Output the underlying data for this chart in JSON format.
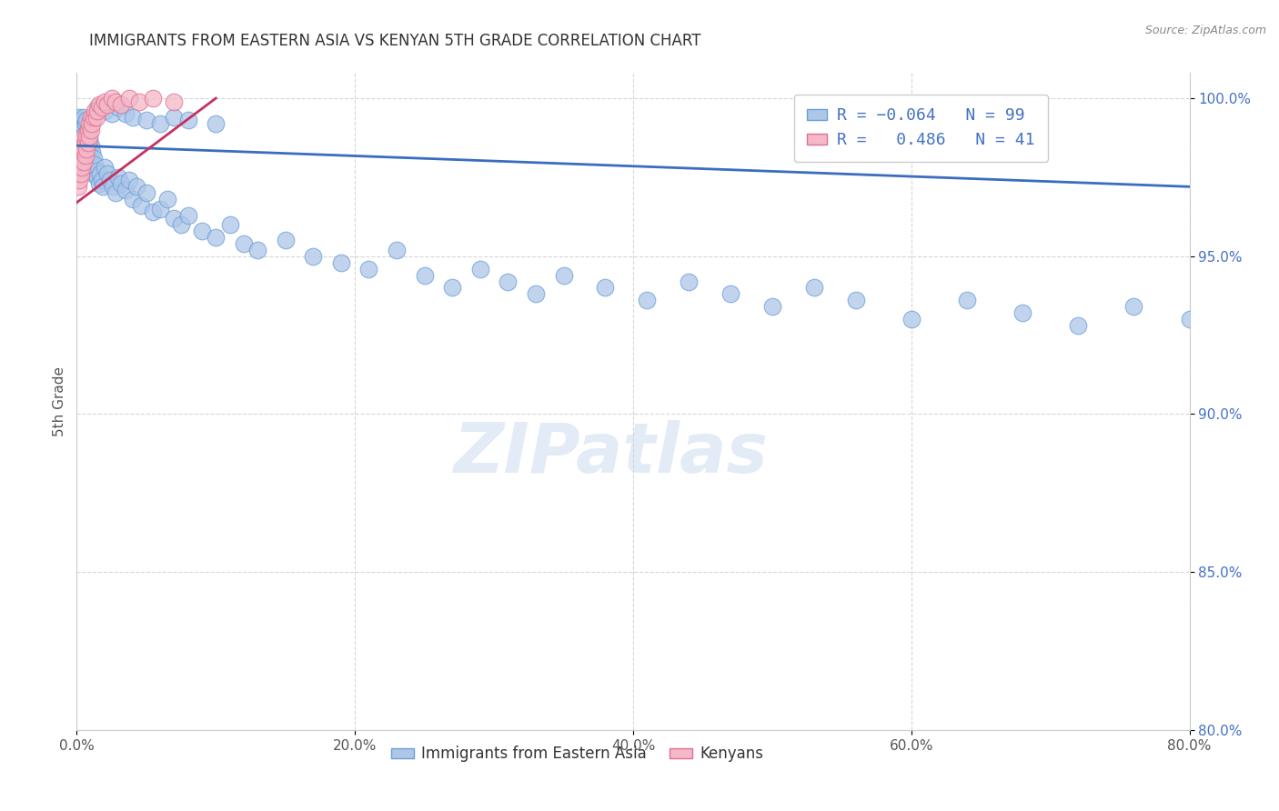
{
  "title": "IMMIGRANTS FROM EASTERN ASIA VS KENYAN 5TH GRADE CORRELATION CHART",
  "source_text": "Source: ZipAtlas.com",
  "ylabel": "5th Grade",
  "xlim": [
    0.0,
    0.8
  ],
  "ylim": [
    0.8,
    1.008
  ],
  "xtick_labels": [
    "0.0%",
    "20.0%",
    "40.0%",
    "60.0%",
    "80.0%"
  ],
  "xtick_vals": [
    0.0,
    0.2,
    0.4,
    0.6,
    0.8
  ],
  "ytick_labels": [
    "100.0%",
    "95.0%",
    "90.0%",
    "85.0%",
    "80.0%"
  ],
  "ytick_vals": [
    1.0,
    0.95,
    0.9,
    0.85,
    0.8
  ],
  "blue_color": "#aec6e8",
  "pink_color": "#f4b8c8",
  "blue_edge_color": "#6a9fd8",
  "pink_edge_color": "#e07090",
  "blue_line_color": "#3a6dbf",
  "pink_line_color": "#c83060",
  "watermark": "ZIPatlas",
  "blue_x": [
    0.001,
    0.001,
    0.002,
    0.002,
    0.002,
    0.002,
    0.003,
    0.003,
    0.003,
    0.004,
    0.004,
    0.004,
    0.005,
    0.005,
    0.005,
    0.005,
    0.006,
    0.006,
    0.006,
    0.007,
    0.007,
    0.007,
    0.008,
    0.008,
    0.008,
    0.009,
    0.009,
    0.01,
    0.01,
    0.011,
    0.011,
    0.012,
    0.012,
    0.013,
    0.014,
    0.015,
    0.016,
    0.017,
    0.018,
    0.019,
    0.02,
    0.022,
    0.024,
    0.026,
    0.028,
    0.03,
    0.032,
    0.035,
    0.038,
    0.04,
    0.043,
    0.046,
    0.05,
    0.055,
    0.06,
    0.065,
    0.07,
    0.075,
    0.08,
    0.09,
    0.1,
    0.11,
    0.12,
    0.13,
    0.15,
    0.17,
    0.19,
    0.21,
    0.23,
    0.25,
    0.27,
    0.29,
    0.31,
    0.33,
    0.35,
    0.38,
    0.41,
    0.44,
    0.47,
    0.5,
    0.53,
    0.56,
    0.6,
    0.64,
    0.68,
    0.72,
    0.76,
    0.8,
    0.015,
    0.02,
    0.025,
    0.03,
    0.035,
    0.04,
    0.05,
    0.06,
    0.07,
    0.08,
    0.1
  ],
  "blue_y": [
    0.986,
    0.989,
    0.984,
    0.988,
    0.991,
    0.994,
    0.985,
    0.989,
    0.992,
    0.986,
    0.99,
    0.993,
    0.983,
    0.987,
    0.991,
    0.994,
    0.984,
    0.988,
    0.992,
    0.985,
    0.989,
    0.993,
    0.982,
    0.986,
    0.99,
    0.983,
    0.987,
    0.98,
    0.985,
    0.978,
    0.983,
    0.976,
    0.981,
    0.979,
    0.977,
    0.975,
    0.973,
    0.976,
    0.974,
    0.972,
    0.978,
    0.976,
    0.974,
    0.972,
    0.97,
    0.975,
    0.973,
    0.971,
    0.974,
    0.968,
    0.972,
    0.966,
    0.97,
    0.964,
    0.965,
    0.968,
    0.962,
    0.96,
    0.963,
    0.958,
    0.956,
    0.96,
    0.954,
    0.952,
    0.955,
    0.95,
    0.948,
    0.946,
    0.952,
    0.944,
    0.94,
    0.946,
    0.942,
    0.938,
    0.944,
    0.94,
    0.936,
    0.942,
    0.938,
    0.934,
    0.94,
    0.936,
    0.93,
    0.936,
    0.932,
    0.928,
    0.934,
    0.93,
    0.997,
    0.996,
    0.995,
    0.997,
    0.995,
    0.994,
    0.993,
    0.992,
    0.994,
    0.993,
    0.992
  ],
  "pink_x": [
    0.001,
    0.001,
    0.001,
    0.002,
    0.002,
    0.002,
    0.003,
    0.003,
    0.003,
    0.004,
    0.004,
    0.004,
    0.005,
    0.005,
    0.005,
    0.006,
    0.006,
    0.007,
    0.007,
    0.008,
    0.008,
    0.009,
    0.009,
    0.01,
    0.01,
    0.011,
    0.012,
    0.013,
    0.014,
    0.015,
    0.016,
    0.018,
    0.02,
    0.022,
    0.025,
    0.028,
    0.032,
    0.038,
    0.045,
    0.055,
    0.07
  ],
  "pink_y": [
    0.972,
    0.976,
    0.98,
    0.974,
    0.978,
    0.982,
    0.976,
    0.98,
    0.984,
    0.978,
    0.982,
    0.986,
    0.98,
    0.984,
    0.988,
    0.982,
    0.986,
    0.984,
    0.988,
    0.986,
    0.99,
    0.988,
    0.992,
    0.99,
    0.994,
    0.992,
    0.994,
    0.996,
    0.994,
    0.996,
    0.998,
    0.997,
    0.999,
    0.998,
    1.0,
    0.999,
    0.998,
    1.0,
    0.999,
    1.0,
    0.999
  ],
  "blue_trend_x": [
    0.0,
    0.8
  ],
  "blue_trend_y": [
    0.985,
    0.972
  ],
  "pink_trend_x": [
    0.0,
    0.1
  ],
  "pink_trend_y": [
    0.967,
    1.0
  ]
}
